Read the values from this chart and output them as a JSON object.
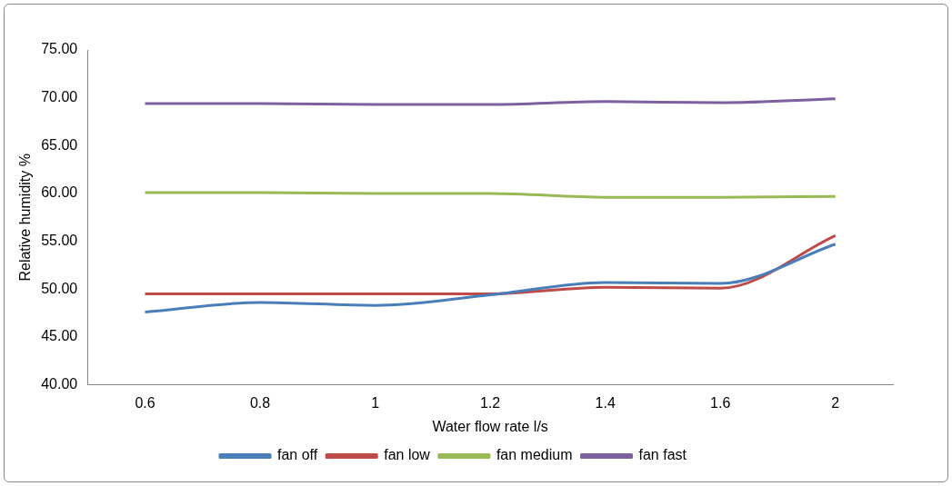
{
  "chart_data": {
    "type": "line",
    "xlabel": "Water flow rate l/s",
    "ylabel": "Relative humidity %",
    "categories": [
      "0.6",
      "0.8",
      "1",
      "1.2",
      "1.4",
      "1.6",
      "2"
    ],
    "series": [
      {
        "name": "fan off",
        "color": "#4a7ebb",
        "values": [
          47.6,
          48.6,
          48.3,
          49.4,
          50.7,
          50.6,
          54.7
        ]
      },
      {
        "name": "fan low",
        "color": "#be4b48",
        "values": [
          49.5,
          49.5,
          49.5,
          49.5,
          50.2,
          50.1,
          55.6
        ]
      },
      {
        "name": "fan medium",
        "color": "#98b954",
        "values": [
          60.1,
          60.1,
          60.0,
          60.0,
          59.6,
          59.6,
          59.7
        ]
      },
      {
        "name": "fan fast",
        "color": "#7d60a0",
        "values": [
          69.4,
          69.4,
          69.3,
          69.3,
          69.6,
          69.5,
          69.9
        ]
      }
    ],
    "ylim": [
      40,
      75
    ],
    "yticks": [
      {
        "value": 40,
        "label": "40.00"
      },
      {
        "value": 45,
        "label": "45.00"
      },
      {
        "value": 50,
        "label": "50.00"
      },
      {
        "value": 55,
        "label": "55.00"
      },
      {
        "value": 60,
        "label": "60.00"
      },
      {
        "value": 65,
        "label": "65.00"
      },
      {
        "value": 70,
        "label": "70.00"
      },
      {
        "value": 75,
        "label": "75.00"
      }
    ],
    "grid": false,
    "legend": "bottom",
    "marker": "none",
    "line_style": "solid"
  }
}
